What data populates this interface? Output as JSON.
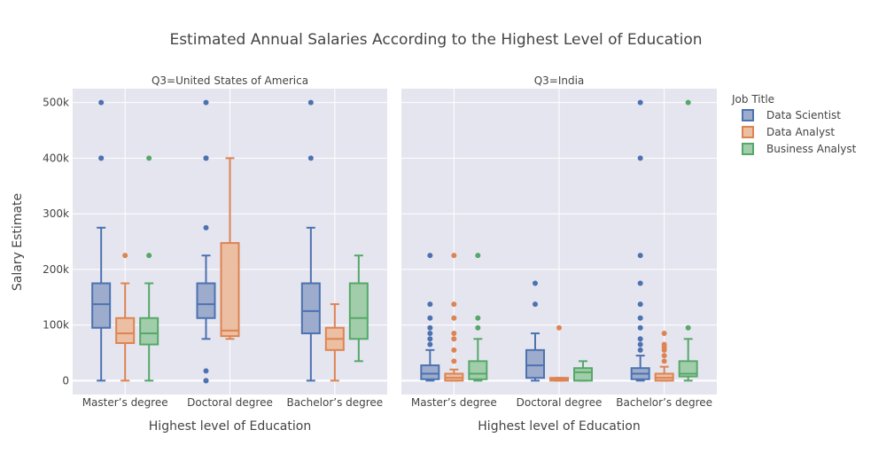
{
  "chart_data": {
    "type": "box",
    "title": "Estimated Annual Salaries According to the Highest Level of Education",
    "ylabel": "Salary Estimate",
    "ylim": [
      -25000,
      525000
    ],
    "yticks": [
      0,
      100000,
      200000,
      300000,
      400000,
      500000
    ],
    "ytick_labels": [
      "0",
      "100k",
      "200k",
      "300k",
      "400k",
      "500k"
    ],
    "grid": true,
    "legend": {
      "title": "Job Title",
      "placement": "right",
      "entries": [
        "Data Scientist",
        "Data Analyst",
        "Business Analyst"
      ]
    },
    "categories": [
      "Master’s degree",
      "Doctoral degree",
      "Bachelor’s degree"
    ],
    "series_colors": [
      "#4c72b0",
      "#dd8452",
      "#55a868"
    ],
    "series_fills": [
      "#9daccd",
      "#ecbea2",
      "#a2cdab"
    ],
    "panels": [
      {
        "title": "Q3=United States of America",
        "xlabel": "Highest level of Education",
        "series": [
          {
            "name": "Data Scientist",
            "boxes": [
              {
                "min": 0,
                "q1": 95000,
                "median": 137500,
                "q3": 175000,
                "max": 275000,
                "outliers": [
                  400000,
                  400000,
                  500000
                ]
              },
              {
                "min": 75000,
                "q1": 112500,
                "median": 137500,
                "q3": 175000,
                "max": 225000,
                "outliers": [
                  275000,
                  400000,
                  400000,
                  500000,
                  17500,
                  0,
                  0
                ]
              },
              {
                "min": 0,
                "q1": 85000,
                "median": 125000,
                "q3": 175000,
                "max": 275000,
                "outliers": [
                  400000,
                  500000
                ]
              }
            ]
          },
          {
            "name": "Data Analyst",
            "boxes": [
              {
                "min": 0,
                "q1": 67500,
                "median": 85000,
                "q3": 112500,
                "max": 175000,
                "outliers": [
                  225000
                ]
              },
              {
                "min": 75000,
                "q1": 80000,
                "median": 90000,
                "q3": 247500,
                "max": 400000,
                "outliers": []
              },
              {
                "min": 0,
                "q1": 55000,
                "median": 75000,
                "q3": 95000,
                "max": 137500,
                "outliers": []
              }
            ]
          },
          {
            "name": "Business Analyst",
            "boxes": [
              {
                "min": 0,
                "q1": 65000,
                "median": 85000,
                "q3": 112500,
                "max": 175000,
                "outliers": [
                  225000,
                  400000
                ]
              },
              null,
              {
                "min": 35000,
                "q1": 75000,
                "median": 112500,
                "q3": 175000,
                "max": 225000,
                "outliers": []
              }
            ]
          }
        ]
      },
      {
        "title": "Q3=India",
        "xlabel": "Highest level of Education",
        "series": [
          {
            "name": "Data Scientist",
            "boxes": [
              {
                "min": 0,
                "q1": 2500,
                "median": 12500,
                "q3": 27500,
                "max": 55000,
                "outliers": [
                  65000,
                  75000,
                  85000,
                  95000,
                  112500,
                  137500,
                  225000
                ]
              },
              {
                "min": 0,
                "q1": 5000,
                "median": 27500,
                "q3": 55000,
                "max": 85000,
                "outliers": [
                  137500,
                  175000
                ]
              },
              {
                "min": 0,
                "q1": 2500,
                "median": 12500,
                "q3": 22500,
                "max": 45000,
                "outliers": [
                  55000,
                  65000,
                  75000,
                  95000,
                  112500,
                  137500,
                  175000,
                  225000,
                  400000,
                  500000
                ]
              }
            ]
          },
          {
            "name": "Data Analyst",
            "boxes": [
              {
                "min": 0,
                "q1": 0,
                "median": 5000,
                "q3": 12500,
                "max": 20000,
                "outliers": [
                  35000,
                  55000,
                  75000,
                  85000,
                  112500,
                  137500,
                  225000
                ]
              },
              {
                "min": 0,
                "q1": 0,
                "median": 2500,
                "q3": 5000,
                "max": 5000,
                "outliers": [
                  95000
                ]
              },
              {
                "min": 0,
                "q1": 0,
                "median": 5000,
                "q3": 12500,
                "max": 25000,
                "outliers": [
                  35000,
                  45000,
                  55000,
                  60000,
                  65000,
                  85000
                ]
              }
            ]
          },
          {
            "name": "Business Analyst",
            "boxes": [
              {
                "min": 0,
                "q1": 2500,
                "median": 12500,
                "q3": 35000,
                "max": 75000,
                "outliers": [
                  95000,
                  112500,
                  225000
                ]
              },
              {
                "min": 0,
                "q1": 0,
                "median": 15000,
                "q3": 22500,
                "max": 35000,
                "outliers": []
              },
              {
                "min": 0,
                "q1": 7500,
                "median": 12500,
                "q3": 35000,
                "max": 75000,
                "outliers": [
                  95000,
                  500000
                ]
              }
            ]
          }
        ]
      }
    ]
  }
}
